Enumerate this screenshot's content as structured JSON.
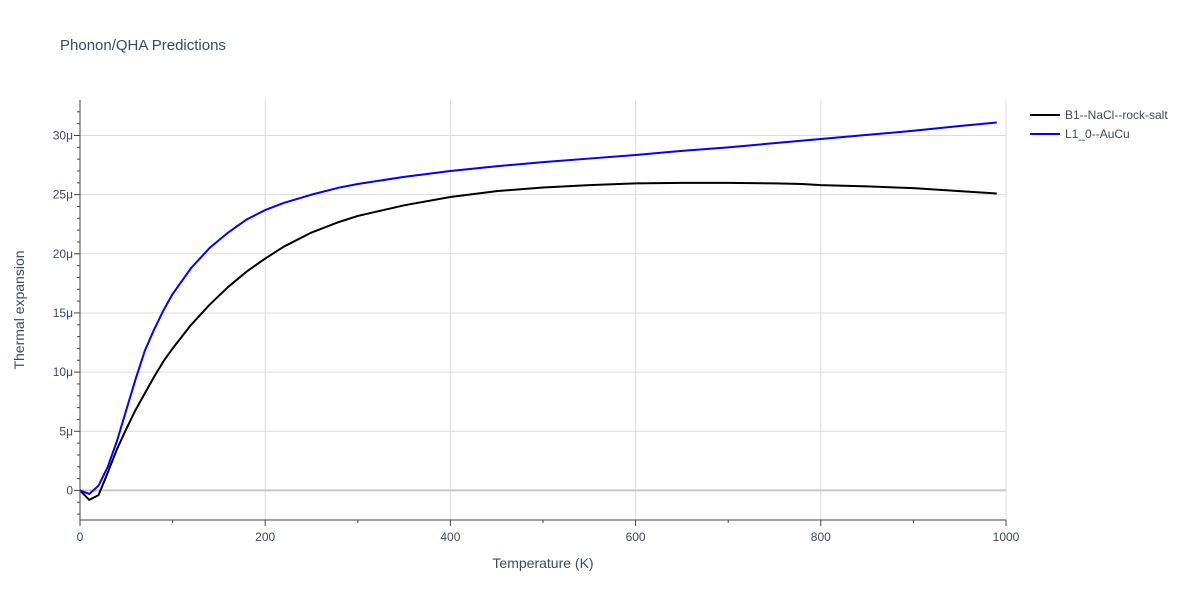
{
  "chart_data": {
    "type": "line",
    "title": "Phonon/QHA Predictions",
    "xlabel": "Temperature (K)",
    "ylabel": "Thermal expansion",
    "xlim": [
      0,
      1000
    ],
    "ylim": [
      -2.5,
      33
    ],
    "x_ticks": [
      0,
      200,
      400,
      600,
      800,
      1000
    ],
    "x_tick_labels": [
      "0",
      "200",
      "400",
      "600",
      "800",
      "1000"
    ],
    "y_ticks": [
      0,
      5,
      10,
      15,
      20,
      25,
      30
    ],
    "y_tick_labels": [
      "0",
      "5μ",
      "10μ",
      "15μ",
      "20μ",
      "25μ",
      "30μ"
    ],
    "grid": true,
    "legend_position": "top-right",
    "series": [
      {
        "name": "B1--NaCl--rock-salt",
        "color": "#000000",
        "x": [
          0,
          10,
          20,
          30,
          40,
          50,
          60,
          70,
          80,
          90,
          100,
          120,
          140,
          160,
          180,
          200,
          220,
          250,
          280,
          300,
          350,
          400,
          450,
          500,
          550,
          600,
          650,
          700,
          750,
          780,
          800,
          850,
          900,
          950,
          990
        ],
        "y": [
          0,
          -0.8,
          -0.4,
          1.5,
          3.5,
          5.2,
          6.8,
          8.2,
          9.6,
          10.9,
          12.0,
          14.0,
          15.7,
          17.2,
          18.5,
          19.6,
          20.6,
          21.8,
          22.7,
          23.2,
          24.1,
          24.8,
          25.3,
          25.6,
          25.8,
          25.95,
          26.0,
          26.0,
          25.95,
          25.9,
          25.8,
          25.7,
          25.55,
          25.3,
          25.1
        ]
      },
      {
        "name": "L1_0--AuCu",
        "color": "#0000ff",
        "x": [
          0,
          10,
          20,
          30,
          40,
          50,
          60,
          70,
          80,
          90,
          100,
          120,
          140,
          160,
          180,
          200,
          220,
          250,
          280,
          300,
          350,
          400,
          450,
          500,
          550,
          600,
          650,
          700,
          750,
          800,
          850,
          900,
          950,
          990
        ],
        "y": [
          0,
          -0.3,
          0.4,
          2.0,
          4.2,
          6.8,
          9.4,
          11.8,
          13.6,
          15.2,
          16.6,
          18.8,
          20.5,
          21.8,
          22.9,
          23.7,
          24.3,
          25.0,
          25.6,
          25.9,
          26.5,
          27.0,
          27.4,
          27.75,
          28.05,
          28.35,
          28.7,
          29.0,
          29.35,
          29.7,
          30.05,
          30.4,
          30.8,
          31.1
        ]
      }
    ]
  }
}
